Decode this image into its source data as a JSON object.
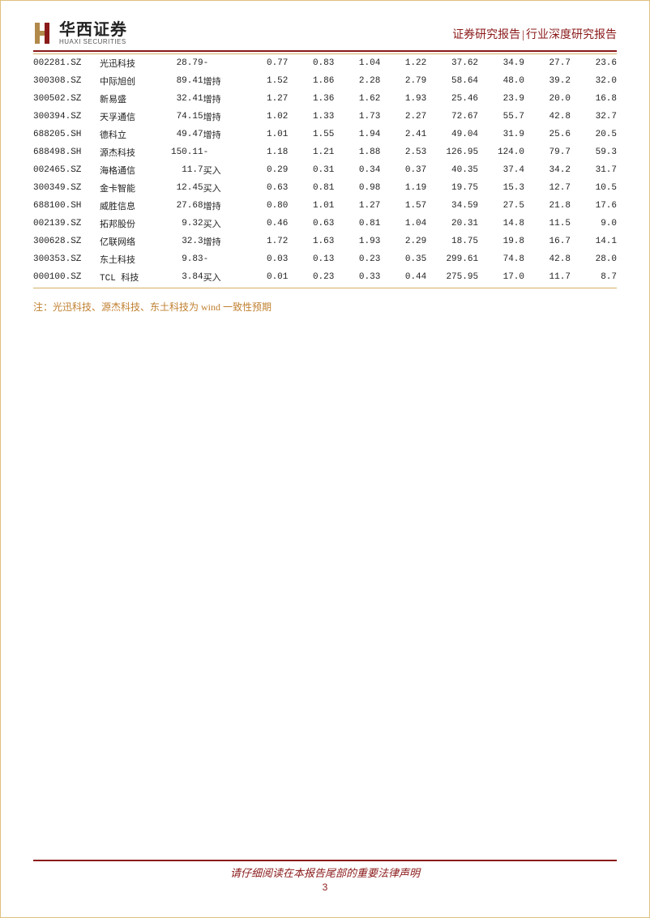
{
  "header": {
    "logo_cn": "华西证券",
    "logo_en": "HUAXI SECURITIES",
    "right_a": "证券研究报告",
    "right_b": "行业深度研究报告"
  },
  "table": {
    "rows": [
      {
        "code": "002281.SZ",
        "name": "光迅科技",
        "price": "28.79",
        "rating": "-",
        "v1": "0.77",
        "v2": "0.83",
        "v3": "1.04",
        "v4": "1.22",
        "v5": "37.62",
        "v6": "34.9",
        "v7": "27.7",
        "v8": "23.6"
      },
      {
        "code": "300308.SZ",
        "name": "中际旭创",
        "price": "89.41",
        "rating": "增持",
        "v1": "1.52",
        "v2": "1.86",
        "v3": "2.28",
        "v4": "2.79",
        "v5": "58.64",
        "v6": "48.0",
        "v7": "39.2",
        "v8": "32.0"
      },
      {
        "code": "300502.SZ",
        "name": "新易盛",
        "price": "32.41",
        "rating": "增持",
        "v1": "1.27",
        "v2": "1.36",
        "v3": "1.62",
        "v4": "1.93",
        "v5": "25.46",
        "v6": "23.9",
        "v7": "20.0",
        "v8": "16.8"
      },
      {
        "code": "300394.SZ",
        "name": "天孚通信",
        "price": "74.15",
        "rating": "增持",
        "v1": "1.02",
        "v2": "1.33",
        "v3": "1.73",
        "v4": "2.27",
        "v5": "72.67",
        "v6": "55.7",
        "v7": "42.8",
        "v8": "32.7"
      },
      {
        "code": "688205.SH",
        "name": "德科立",
        "price": "49.47",
        "rating": "增持",
        "v1": "1.01",
        "v2": "1.55",
        "v3": "1.94",
        "v4": "2.41",
        "v5": "49.04",
        "v6": "31.9",
        "v7": "25.6",
        "v8": "20.5"
      },
      {
        "code": "688498.SH",
        "name": "源杰科技",
        "price": "150.11",
        "rating": "-",
        "v1": "1.18",
        "v2": "1.21",
        "v3": "1.88",
        "v4": "2.53",
        "v5": "126.95",
        "v6": "124.0",
        "v7": "79.7",
        "v8": "59.3"
      },
      {
        "code": "002465.SZ",
        "name": "海格通信",
        "price": "11.7",
        "rating": "买入",
        "v1": "0.29",
        "v2": "0.31",
        "v3": "0.34",
        "v4": "0.37",
        "v5": "40.35",
        "v6": "37.4",
        "v7": "34.2",
        "v8": "31.7"
      },
      {
        "code": "300349.SZ",
        "name": "金卡智能",
        "price": "12.45",
        "rating": "买入",
        "v1": "0.63",
        "v2": "0.81",
        "v3": "0.98",
        "v4": "1.19",
        "v5": "19.75",
        "v6": "15.3",
        "v7": "12.7",
        "v8": "10.5"
      },
      {
        "code": "688100.SH",
        "name": "威胜信息",
        "price": "27.68",
        "rating": "增持",
        "v1": "0.80",
        "v2": "1.01",
        "v3": "1.27",
        "v4": "1.57",
        "v5": "34.59",
        "v6": "27.5",
        "v7": "21.8",
        "v8": "17.6"
      },
      {
        "code": "002139.SZ",
        "name": "拓邦股份",
        "price": "9.32",
        "rating": "买入",
        "v1": "0.46",
        "v2": "0.63",
        "v3": "0.81",
        "v4": "1.04",
        "v5": "20.31",
        "v6": "14.8",
        "v7": "11.5",
        "v8": "9.0"
      },
      {
        "code": "300628.SZ",
        "name": "亿联网络",
        "price": "32.3",
        "rating": "增持",
        "v1": "1.72",
        "v2": "1.63",
        "v3": "1.93",
        "v4": "2.29",
        "v5": "18.75",
        "v6": "19.8",
        "v7": "16.7",
        "v8": "14.1"
      },
      {
        "code": "300353.SZ",
        "name": "东土科技",
        "price": "9.83",
        "rating": "-",
        "v1": "0.03",
        "v2": "0.13",
        "v3": "0.23",
        "v4": "0.35",
        "v5": "299.61",
        "v6": "74.8",
        "v7": "42.8",
        "v8": "28.0"
      },
      {
        "code": "000100.SZ",
        "name": "TCL 科技",
        "price": "3.84",
        "rating": "买入",
        "v1": "0.01",
        "v2": "0.23",
        "v3": "0.33",
        "v4": "0.44",
        "v5": "275.95",
        "v6": "17.0",
        "v7": "11.7",
        "v8": "8.7"
      }
    ]
  },
  "note": "注：光迅科技、源杰科技、东土科技为 wind 一致性预期",
  "footer": {
    "text": "请仔细阅读在本报告尾部的重要法律声明",
    "page": "3"
  },
  "colors": {
    "brand_red": "#8b1a1a",
    "gold": "#d4b06a",
    "note_orange": "#c08030"
  }
}
